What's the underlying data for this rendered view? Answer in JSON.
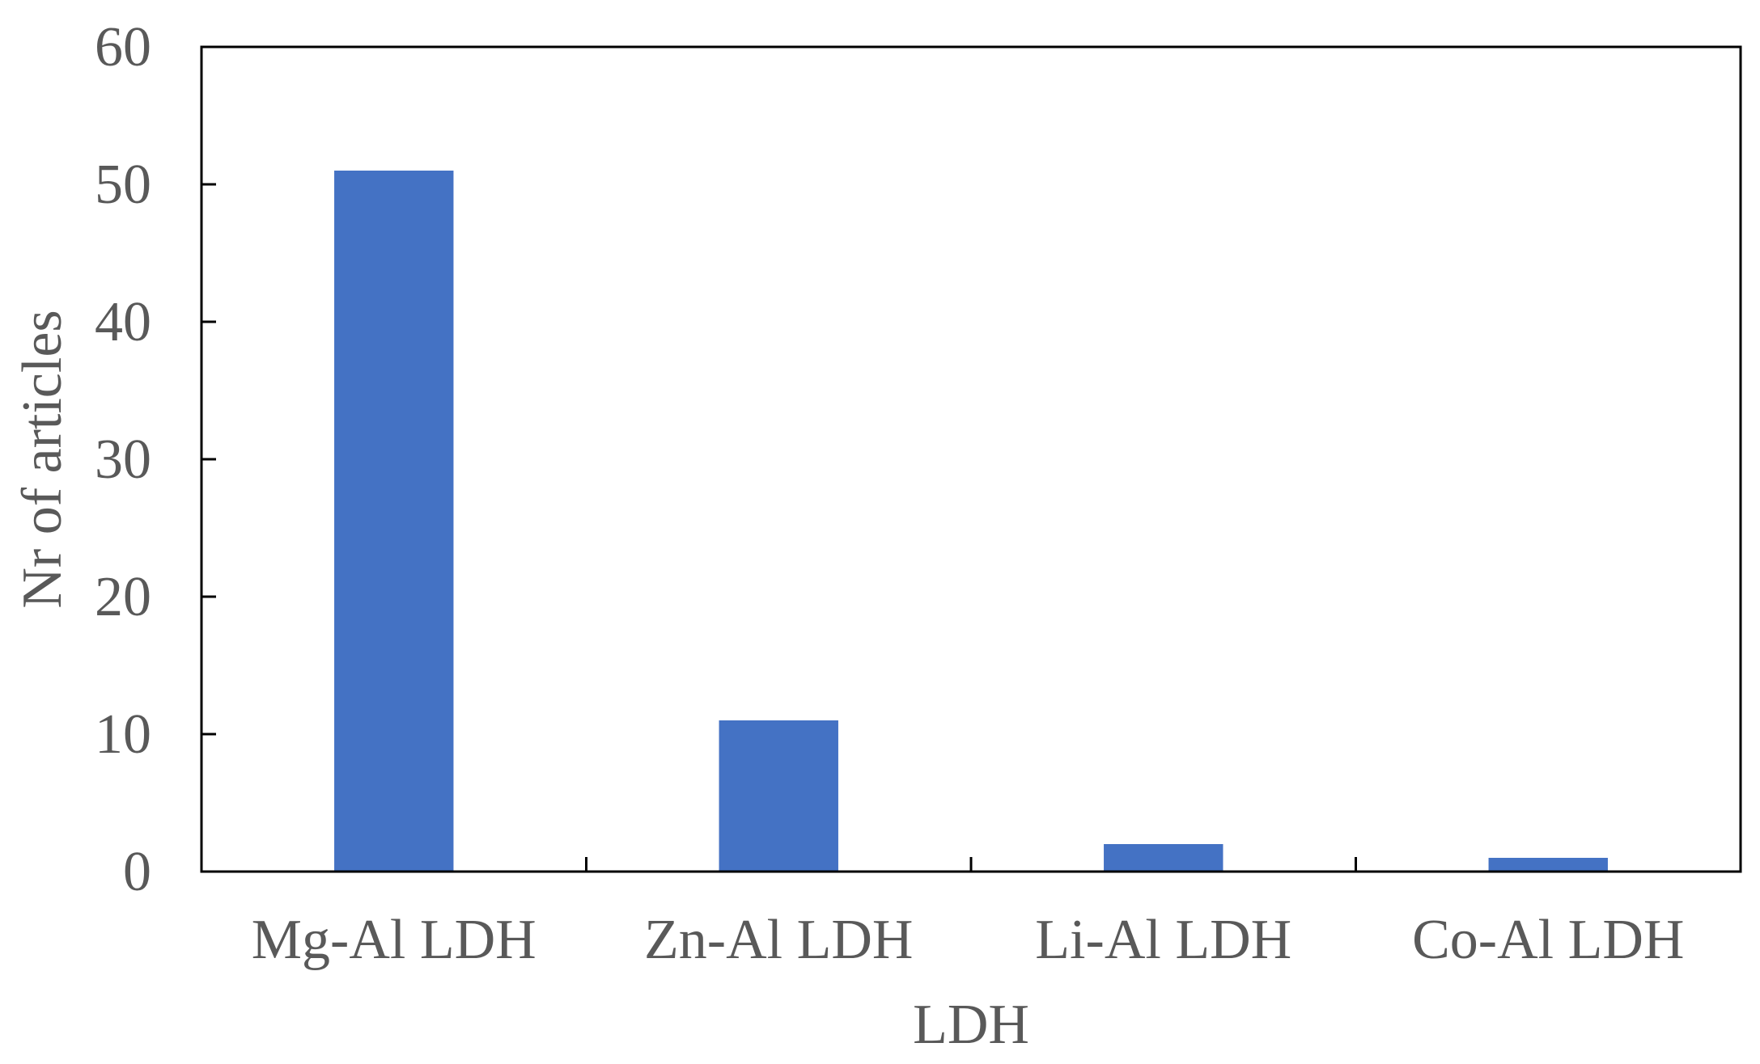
{
  "chart_data": {
    "type": "bar",
    "categories": [
      "Mg-Al LDH",
      "Zn-Al LDH",
      "Li-Al LDH",
      "Co-Al LDH"
    ],
    "values": [
      51,
      11,
      2,
      1
    ],
    "xlabel": "LDH",
    "ylabel": "Nr of articles",
    "ylim": [
      0,
      60
    ],
    "yticks": [
      0,
      10,
      20,
      30,
      40,
      50,
      60
    ],
    "grid": false,
    "legend": "none",
    "bar_color": "#4472C4",
    "axis_color": "#000000",
    "text_color": "#595959"
  }
}
